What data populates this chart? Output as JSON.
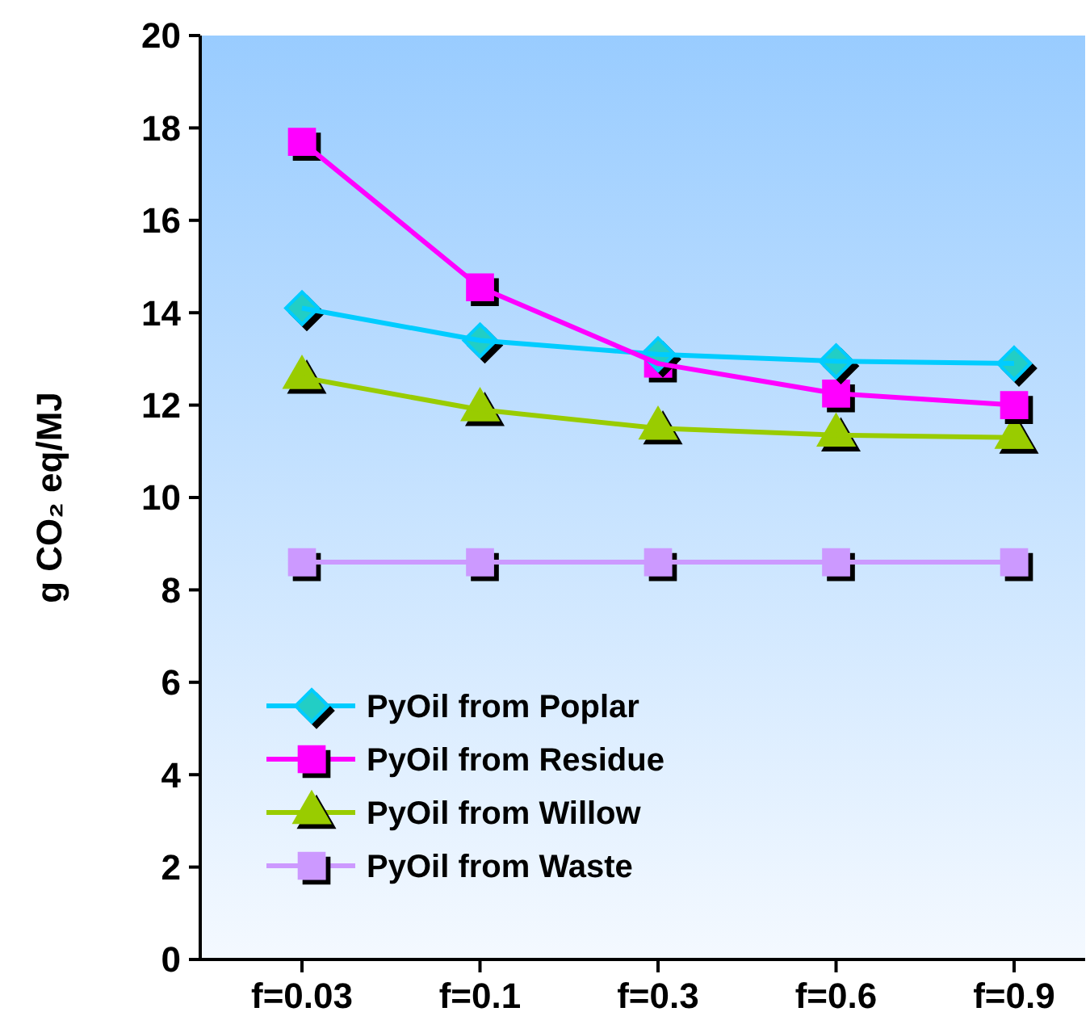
{
  "chart_data": {
    "type": "line",
    "ylabel": "g CO₂ eq/MJ",
    "categories": [
      "f=0.03",
      "f=0.1",
      "f=0.3",
      "f=0.6",
      "f=0.9"
    ],
    "ylim": [
      0,
      20
    ],
    "yticks": [
      0,
      2,
      4,
      6,
      8,
      10,
      12,
      14,
      16,
      18,
      20
    ],
    "grid": false,
    "legend": "bottom left",
    "series": [
      {
        "name": "PyOil from Poplar",
        "color": "#00ccff",
        "marker": "diamond",
        "values": [
          14.1,
          13.4,
          13.1,
          12.95,
          12.9
        ]
      },
      {
        "name": "PyOil from Residue",
        "color": "#ff00ff",
        "marker": "square",
        "values": [
          17.7,
          14.55,
          12.9,
          12.25,
          12.0
        ]
      },
      {
        "name": "PyOil from Willow",
        "color": "#99cc00",
        "marker": "triangle",
        "values": [
          12.6,
          11.9,
          11.5,
          11.35,
          11.3
        ]
      },
      {
        "name": "PyOil from Waste",
        "color": "#cc99ff",
        "marker": "square",
        "values": [
          8.6,
          8.6,
          8.6,
          8.6,
          8.6
        ]
      }
    ]
  }
}
